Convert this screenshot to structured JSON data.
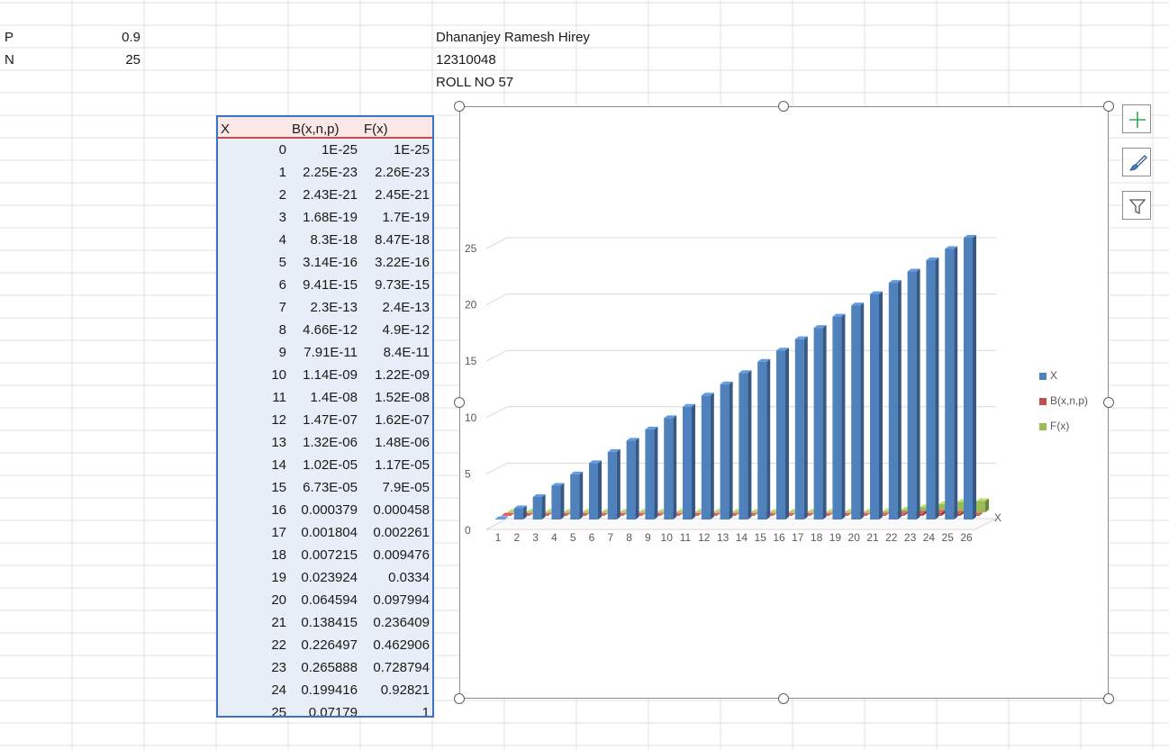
{
  "params": [
    {
      "label": "P",
      "value": "0.9"
    },
    {
      "label": "N",
      "value": "25"
    }
  ],
  "info": {
    "name": "Dhananjey Ramesh Hirey",
    "id": "12310048",
    "roll": "ROLL NO 57"
  },
  "table": {
    "headers": [
      "X",
      "B(x,n,p)",
      "F(x)"
    ],
    "rows": [
      [
        "0",
        "1E-25",
        "1E-25"
      ],
      [
        "1",
        "2.25E-23",
        "2.26E-23"
      ],
      [
        "2",
        "2.43E-21",
        "2.45E-21"
      ],
      [
        "3",
        "1.68E-19",
        "1.7E-19"
      ],
      [
        "4",
        "8.3E-18",
        "8.47E-18"
      ],
      [
        "5",
        "3.14E-16",
        "3.22E-16"
      ],
      [
        "6",
        "9.41E-15",
        "9.73E-15"
      ],
      [
        "7",
        "2.3E-13",
        "2.4E-13"
      ],
      [
        "8",
        "4.66E-12",
        "4.9E-12"
      ],
      [
        "9",
        "7.91E-11",
        "8.4E-11"
      ],
      [
        "10",
        "1.14E-09",
        "1.22E-09"
      ],
      [
        "11",
        "1.4E-08",
        "1.52E-08"
      ],
      [
        "12",
        "1.47E-07",
        "1.62E-07"
      ],
      [
        "13",
        "1.32E-06",
        "1.48E-06"
      ],
      [
        "14",
        "1.02E-05",
        "1.17E-05"
      ],
      [
        "15",
        "6.73E-05",
        "7.9E-05"
      ],
      [
        "16",
        "0.000379",
        "0.000458"
      ],
      [
        "17",
        "0.001804",
        "0.002261"
      ],
      [
        "18",
        "0.007215",
        "0.009476"
      ],
      [
        "19",
        "0.023924",
        "0.0334"
      ],
      [
        "20",
        "0.064594",
        "0.097994"
      ],
      [
        "21",
        "0.138415",
        "0.236409"
      ],
      [
        "22",
        "0.226497",
        "0.462906"
      ],
      [
        "23",
        "0.265888",
        "0.728794"
      ],
      [
        "24",
        "0.199416",
        "0.92821"
      ],
      [
        "25",
        "0.07179",
        "1"
      ]
    ]
  },
  "chart_data": {
    "type": "bar",
    "categories": [
      "1",
      "2",
      "3",
      "4",
      "5",
      "6",
      "7",
      "8",
      "9",
      "10",
      "11",
      "12",
      "13",
      "14",
      "15",
      "16",
      "17",
      "18",
      "19",
      "20",
      "21",
      "22",
      "23",
      "24",
      "25",
      "26"
    ],
    "series": [
      {
        "name": "X",
        "color": "#4f81bd",
        "values": [
          0,
          1,
          2,
          3,
          4,
          5,
          6,
          7,
          8,
          9,
          10,
          11,
          12,
          13,
          14,
          15,
          16,
          17,
          18,
          19,
          20,
          21,
          22,
          23,
          24,
          25
        ]
      },
      {
        "name": "B(x,n,p)",
        "color": "#c0504d",
        "values": [
          1e-25,
          2.25e-23,
          2.43e-21,
          1.68e-19,
          8.3e-18,
          3.14e-16,
          9.41e-15,
          2.3e-13,
          4.66e-12,
          7.91e-11,
          1.14e-09,
          1.4e-08,
          1.47e-07,
          1.32e-06,
          1.02e-05,
          6.73e-05,
          0.000379,
          0.001804,
          0.007215,
          0.023924,
          0.064594,
          0.138415,
          0.226497,
          0.265888,
          0.199416,
          0.07179
        ]
      },
      {
        "name": "F(x)",
        "color": "#9bbb59",
        "values": [
          1e-25,
          2.26e-23,
          2.45e-21,
          1.7e-19,
          8.47e-18,
          3.22e-16,
          9.73e-15,
          2.4e-13,
          4.9e-12,
          8.4e-11,
          1.22e-09,
          1.52e-08,
          1.62e-07,
          1.48e-06,
          1.17e-05,
          7.9e-05,
          0.000458,
          0.002261,
          0.009476,
          0.0334,
          0.097994,
          0.236409,
          0.462906,
          0.728794,
          0.92821,
          1
        ]
      }
    ],
    "y_ticks": [
      "0",
      "5",
      "10",
      "15",
      "20",
      "25"
    ],
    "ylim": [
      0,
      25
    ],
    "depth_axis_label": "X",
    "title": "",
    "legend_position": "right",
    "grid": true
  }
}
